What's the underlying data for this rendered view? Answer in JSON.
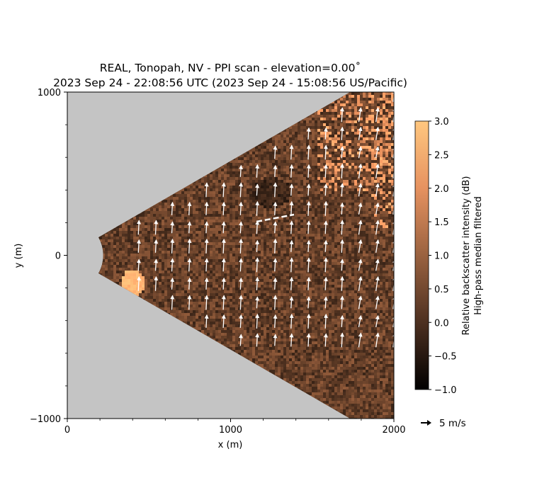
{
  "chart_data": {
    "type": "heatmap",
    "title_line1": "REAL, Tonopah, NV - PPI scan - elevation=0.00˚",
    "title_line2": "2023 Sep 24 - 22:08:56 UTC (2023 Sep 24 - 15:08:56 US/Pacific)",
    "xlabel": "x (m)",
    "ylabel": "y (m)",
    "xlim": [
      0,
      2000
    ],
    "ylim": [
      -1000,
      1000
    ],
    "xticks": [
      "0",
      "1000",
      "2000"
    ],
    "yticks": [
      "1000",
      "0",
      "−1000"
    ],
    "xticks_values": [
      0,
      1000,
      2000
    ],
    "yticks_values": [
      1000,
      0,
      -1000
    ],
    "scan_sector": {
      "range_min_m": 220,
      "range_max_m": 2000,
      "azimuth_half_width_deg": 30
    },
    "colorbar": {
      "label_line1": "Relative backscatter intensity (dB)",
      "label_line2": "High-pass median filtered",
      "min": -1.0,
      "max": 3.0,
      "tick_values": [
        3.0,
        2.5,
        2.0,
        1.5,
        1.0,
        0.5,
        0.0,
        -0.5,
        -1.0
      ],
      "ticks": [
        "3.0",
        "2.5",
        "2.0",
        "1.5",
        "1.0",
        "0.5",
        "0.0",
        "−0.5",
        "−1.0"
      ],
      "colormap": "copper"
    },
    "wind_vectors": {
      "reference_label": "5 m/s",
      "reference_speed": 5,
      "dominant_direction": "northward",
      "x_positions": [
        435,
        540,
        640,
        745,
        850,
        955,
        1060,
        1160,
        1270,
        1370,
        1475,
        1580,
        1680,
        1785,
        1890,
        1995
      ]
    },
    "background_color": "#c4c4c4",
    "foreground_text_color": "#000000"
  }
}
